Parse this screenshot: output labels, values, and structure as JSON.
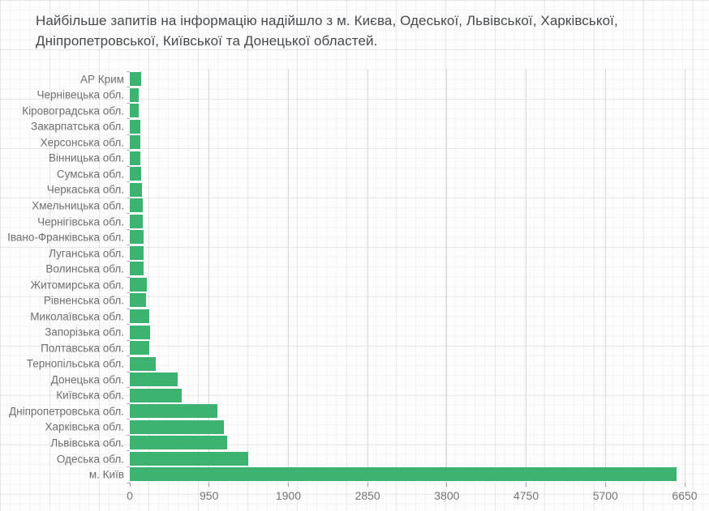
{
  "title": {
    "line1": "Найбільше запитів на інформацію надійшло з м. Києва, Одеської, Львівської, Харківської,",
    "line2": "Дніпропетровської, Київської та Донецької областей."
  },
  "chart_data": {
    "type": "bar",
    "orientation": "horizontal",
    "title": "Найбільше запитів на інформацію надійшло з м. Києва, Одеської, Львівської, Харківської, Дніпропетровської, Київської та Донецької областей.",
    "categories": [
      "АР Крим",
      "Чернівецька обл.",
      "Кіровоградська обл.",
      "Закарпатська обл.",
      "Херсонська обл.",
      "Вінницька обл.",
      "Сумська обл.",
      "Черкаська обл.",
      "Хмельницька обл.",
      "Чернігівська обл.",
      "Івано-Франківська обл.",
      "Луганська обл.",
      "Волинська обл.",
      "Житомирська обл.",
      "Рівненська обл.",
      "Миколаївська обл.",
      "Запорізька обл.",
      "Полтавська обл.",
      "Тернопільська обл.",
      "Донецька обл.",
      "Київська обл.",
      "Дніпропетровська обл.",
      "Харківська обл.",
      "Львівська обл.",
      "Одеська обл.",
      "м. Київ"
    ],
    "values": [
      140,
      105,
      110,
      130,
      125,
      130,
      140,
      150,
      155,
      155,
      165,
      165,
      165,
      200,
      195,
      230,
      245,
      230,
      315,
      575,
      620,
      1050,
      1130,
      1170,
      1420,
      6550
    ],
    "x_ticks": [
      0,
      950,
      1900,
      2850,
      3800,
      4750,
      5700,
      6650
    ],
    "xlim": [
      0,
      6650
    ],
    "xlabel": "",
    "ylabel": "",
    "grid": true,
    "legend": false,
    "bar_color": "#3cb371"
  },
  "colors": {
    "bar": "#3cb371",
    "title_text": "#474a4c",
    "category_label_text": "#6e6e6e",
    "tick_label_text": "#757575",
    "chart_gridline": "#d8d8d8",
    "background": "#fdfdfd"
  }
}
